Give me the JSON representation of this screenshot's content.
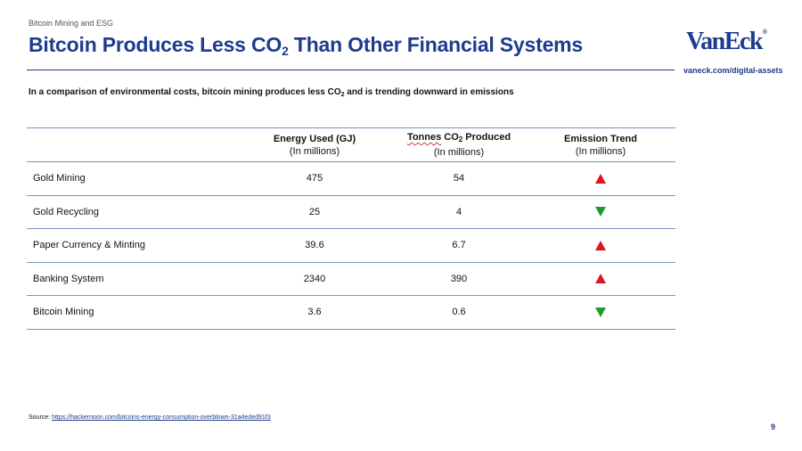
{
  "header": {
    "section_label": "Bitcoin Mining and ESG",
    "title_main": "Bitcoin Produces Less CO",
    "title_sub": "2",
    "title_rest": " Than Other Financial Systems",
    "logo_text": "VanEck",
    "logo_reg": "®",
    "site_link": "vaneck.com/digital-assets"
  },
  "subtitle": {
    "pre": "In a comparison of environmental costs, bitcoin mining produces less CO",
    "sub": "2",
    "post": " and is trending downward in emissions"
  },
  "table": {
    "columns": [
      {
        "main": "Energy Used (GJ)",
        "sub": "(In millions)"
      },
      {
        "main_pre": "Tonnes",
        "main_mid": " CO",
        "main_sub": "2",
        "main_post": " Produced",
        "sub": "(In millions)"
      },
      {
        "main": "Emission Trend",
        "sub": "(In millions)"
      }
    ],
    "rows": [
      {
        "label": "Gold Mining",
        "energy": "475",
        "tonnes": "54",
        "trend": "up"
      },
      {
        "label": "Gold Recycling",
        "energy": "25",
        "tonnes": "4",
        "trend": "down"
      },
      {
        "label": "Paper Currency & Minting",
        "energy": "39.6",
        "tonnes": "6.7",
        "trend": "up"
      },
      {
        "label": "Banking System",
        "energy": "2340",
        "tonnes": "390",
        "trend": "up"
      },
      {
        "label": "Bitcoin Mining",
        "energy": "3.6",
        "tonnes": "0.6",
        "trend": "down"
      }
    ]
  },
  "footer": {
    "source_label": "Source: ",
    "source_url": "https://hackernoon.com/bitcoins-energy-consumption-overblown-31a4eded91f3",
    "page_number": "9"
  },
  "colors": {
    "brand_blue": "#1d3b8f",
    "trend_up": "#e0141e",
    "trend_down": "#1f9b2f"
  }
}
